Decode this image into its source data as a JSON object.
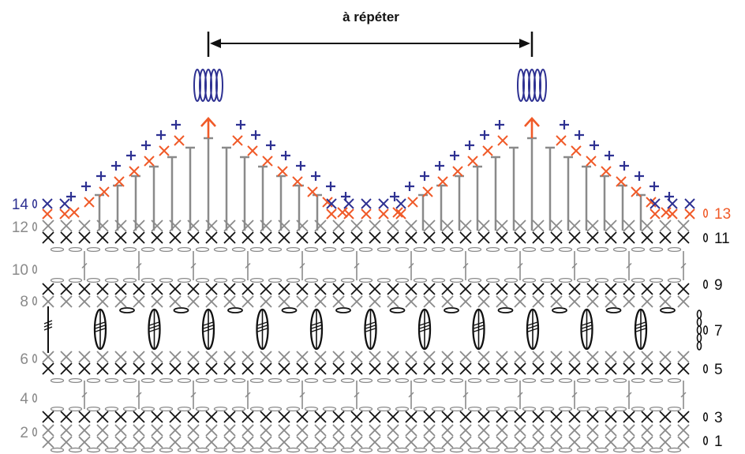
{
  "header": {
    "repeat_label": "à répéter"
  },
  "row_labels": {
    "left": [
      {
        "text": "14",
        "row": 14,
        "color": "#2e3192"
      },
      {
        "text": "12",
        "row": 12,
        "color": "#8a8a8a"
      },
      {
        "text": "10",
        "row": 10,
        "color": "#8a8a8a"
      },
      {
        "text": "8",
        "row": 8,
        "color": "#8a8a8a"
      },
      {
        "text": "6",
        "row": 6,
        "color": "#8a8a8a"
      },
      {
        "text": "4",
        "row": 4,
        "color": "#8a8a8a"
      },
      {
        "text": "2",
        "row": 2,
        "color": "#8a8a8a"
      }
    ],
    "right": [
      {
        "text": "13",
        "row": 13,
        "color": "#f05a28"
      },
      {
        "text": "11",
        "row": 11,
        "color": "#111111"
      },
      {
        "text": "9",
        "row": 9,
        "color": "#111111"
      },
      {
        "text": "7",
        "row": 7,
        "color": "#111111"
      },
      {
        "text": "5",
        "row": 5,
        "color": "#111111"
      },
      {
        "text": "3",
        "row": 3,
        "color": "#111111"
      },
      {
        "text": "1",
        "row": 1,
        "color": "#111111"
      }
    ]
  },
  "colors": {
    "black": "#111111",
    "gray": "#8a8a8a",
    "orange": "#f05a28",
    "blue": "#2e3192"
  },
  "symbols": {
    "single_crochet": "x-mark",
    "chain": "oval",
    "double_crochet": "vertical-stem-with-bar",
    "triple_crochet_cluster": "bobble",
    "turning_chain": "small-oval"
  }
}
